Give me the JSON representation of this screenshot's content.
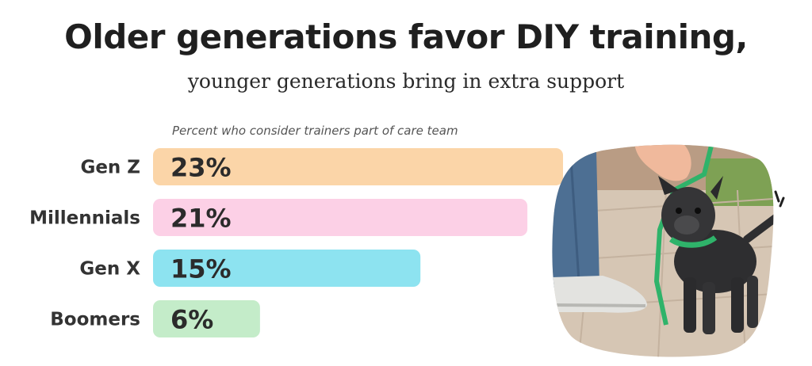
{
  "title": "Older generations favor DIY training,",
  "subtitle": "younger generations bring in extra support",
  "caption": "Percent who consider trainers part of care team",
  "colors": {
    "title": "#1f1f1f",
    "label": "#333333",
    "bar_text": "#2b2b2b"
  },
  "chart_data": {
    "type": "bar",
    "orientation": "horizontal",
    "categories": [
      "Gen Z",
      "Millennials",
      "Gen X",
      "Boomers"
    ],
    "values": [
      23,
      21,
      15,
      6
    ],
    "value_labels": [
      "23%",
      "21%",
      "15%",
      "6%"
    ],
    "bar_colors": [
      "#fbd5a8",
      "#fcd0e6",
      "#8de3f0",
      "#c4ecc9"
    ],
    "unit": "%",
    "xlim": [
      0,
      25
    ],
    "title": "Older generations favor DIY training,",
    "subtitle": "younger generations bring in extra support",
    "xlabel": "Percent who consider trainers part of care team",
    "ylabel": "",
    "grid": false,
    "legend": "none"
  },
  "photo": {
    "icon": "dog-on-leash-photo"
  }
}
